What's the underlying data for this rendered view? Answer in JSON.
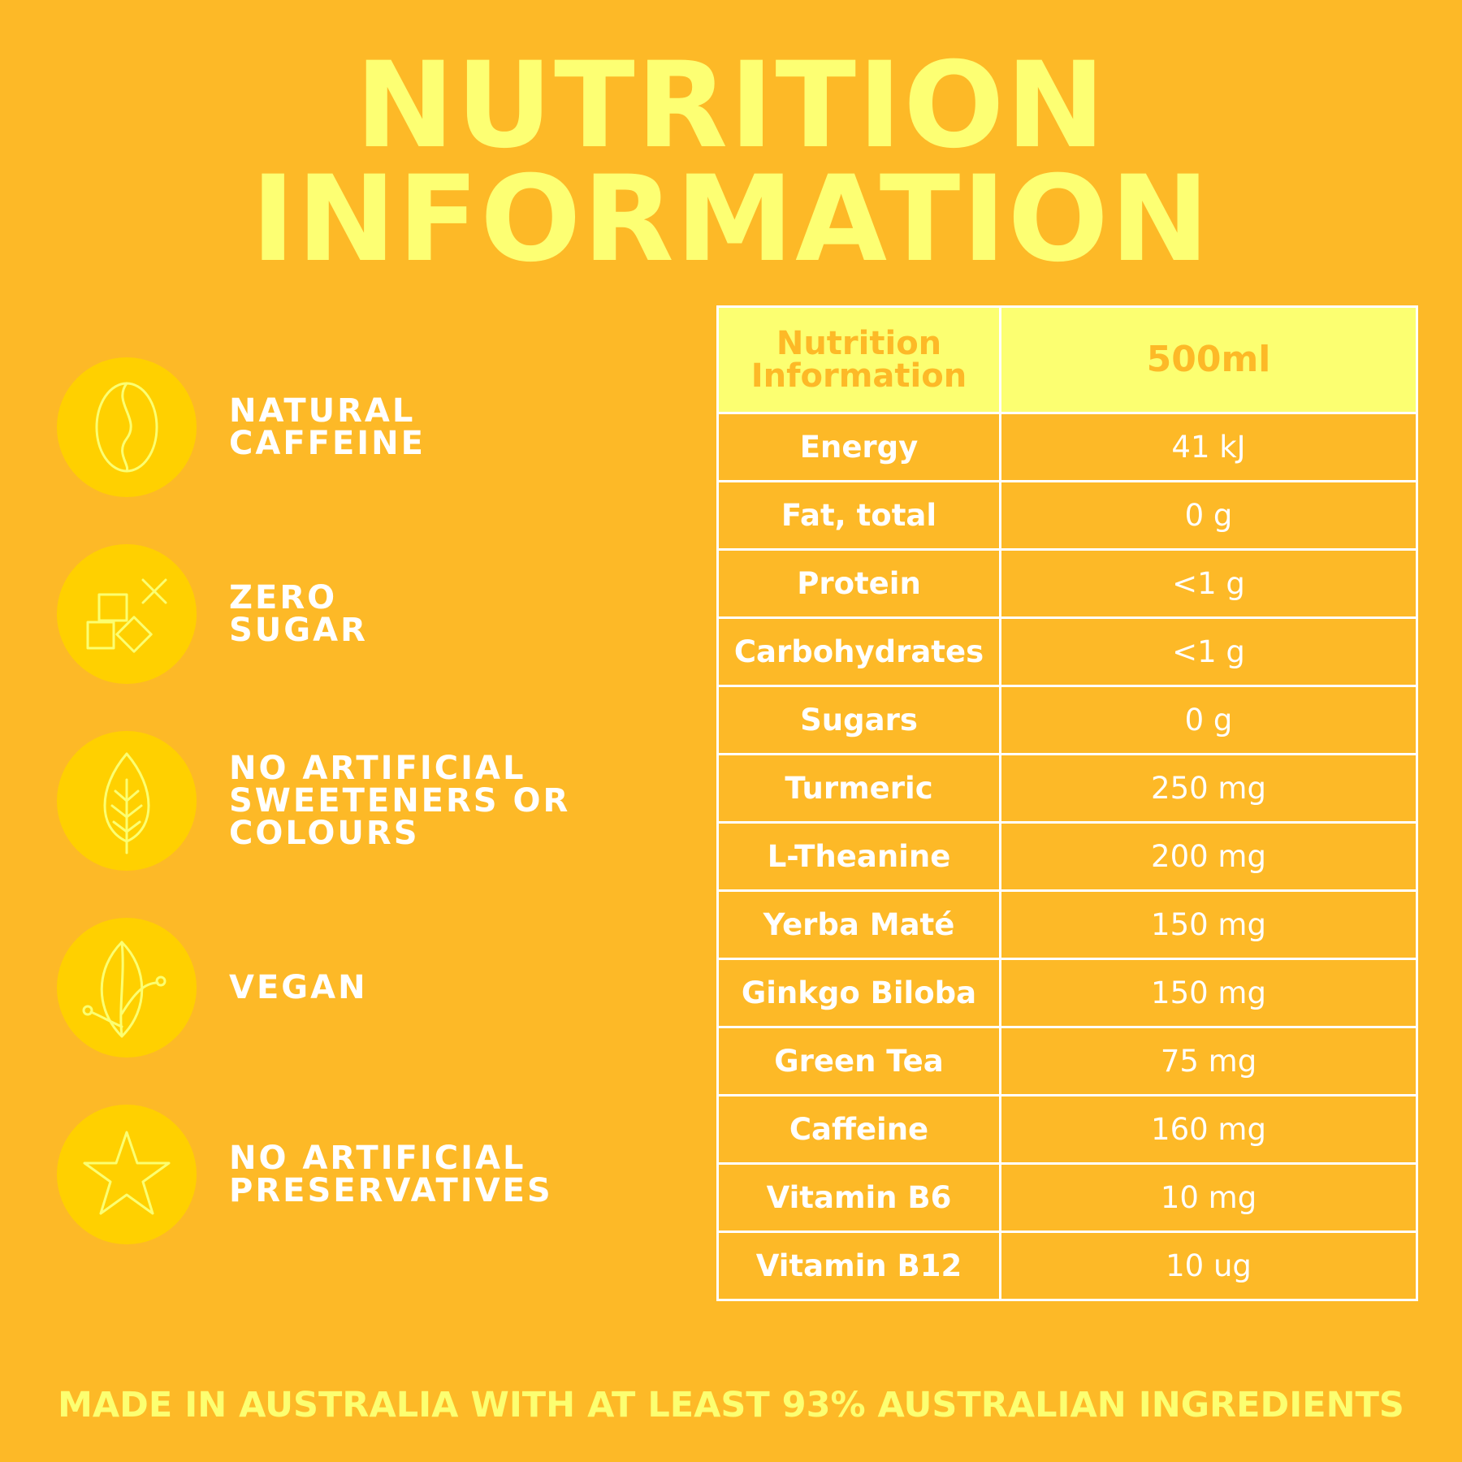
{
  "title": {
    "line1": "NUTRITION",
    "line2": "INFORMATION"
  },
  "features": [
    {
      "label": "NATURAL\nCAFFEINE",
      "icon": "coffee-bean-icon"
    },
    {
      "label": "ZERO\nSUGAR",
      "icon": "sugar-cubes-icon"
    },
    {
      "label": "NO ARTIFICIAL\nSWEETENERS OR\nCOLOURS",
      "icon": "leaf-icon"
    },
    {
      "label": "VEGAN",
      "icon": "vegan-leaf-icon"
    },
    {
      "label": "NO ARTIFICIAL\nPRESERVATIVES",
      "icon": "star-icon"
    }
  ],
  "table": {
    "header": {
      "name": "Nutrition\nInformation",
      "value": "500ml"
    },
    "rows": [
      {
        "name": "Energy",
        "value": "41 kJ"
      },
      {
        "name": "Fat, total",
        "value": "0 g"
      },
      {
        "name": "Protein",
        "value": "<1 g"
      },
      {
        "name": "Carbohydrates",
        "value": "<1 g"
      },
      {
        "name": "Sugars",
        "value": "0 g"
      },
      {
        "name": "Turmeric",
        "value": "250 mg"
      },
      {
        "name": "L-Theanine",
        "value": "200 mg"
      },
      {
        "name": "Yerba Maté",
        "value": "150 mg"
      },
      {
        "name": "Ginkgo Biloba",
        "value": "150 mg"
      },
      {
        "name": "Green Tea",
        "value": "75 mg"
      },
      {
        "name": "Caffeine",
        "value": "160 mg"
      },
      {
        "name": "Vitamin B6",
        "value": "10 mg"
      },
      {
        "name": "Vitamin B12",
        "value": "10 ug"
      }
    ]
  },
  "footer": "MADE IN AUSTRALIA WITH AT LEAST 93% AUSTRALIAN INGREDIENTS",
  "colors": {
    "background": "#FDB927",
    "title": "#FDFF73",
    "circle": "#FFD000",
    "header_fill": "#FCFF71",
    "text": "#FFFFFF"
  }
}
